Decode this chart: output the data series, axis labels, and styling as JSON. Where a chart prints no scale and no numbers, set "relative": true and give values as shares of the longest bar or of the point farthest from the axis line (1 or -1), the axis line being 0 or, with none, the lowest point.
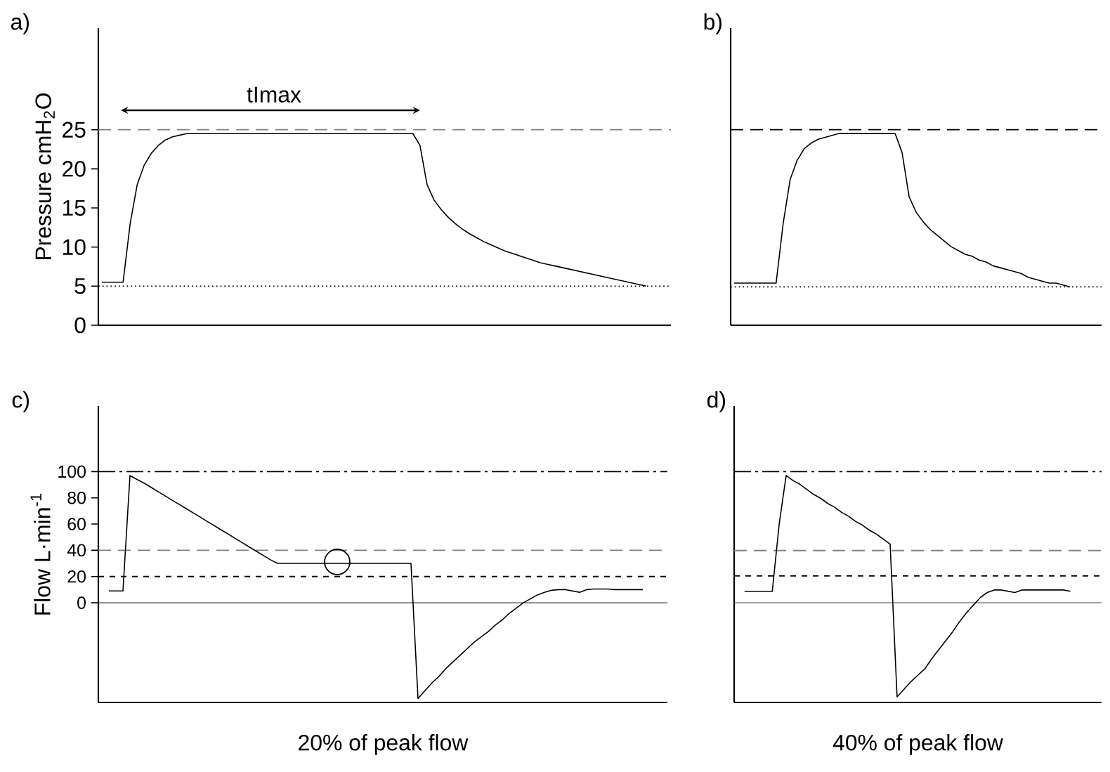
{
  "chart_data": [
    {
      "type": "line",
      "title": "a)",
      "ylabel": "Pressure cmH$_{2}$O",
      "annotations": [
        "tImax"
      ],
      "tick_labels": "y",
      "ylim": [
        0,
        38
      ],
      "yticks": [
        0,
        5,
        10,
        15,
        20,
        25
      ],
      "categories": [
        null,
        null,
        null,
        null,
        null,
        null,
        null,
        null,
        null,
        null,
        null,
        null,
        null,
        null,
        null,
        null,
        null,
        null,
        null,
        null,
        null,
        null,
        null,
        null,
        null,
        null,
        null,
        null,
        null,
        null,
        null,
        null,
        null,
        null,
        null,
        null,
        null,
        null,
        null,
        null,
        null,
        null,
        null,
        null,
        null,
        null,
        null,
        null,
        null,
        null,
        null,
        null,
        null,
        null,
        null,
        null,
        null,
        null,
        null,
        null,
        null,
        null,
        null,
        null,
        null,
        null,
        null,
        null,
        null,
        null,
        null,
        null,
        null,
        null,
        null,
        null,
        null,
        null,
        null,
        null,
        null
      ],
      "color": "#000000",
      "values": [
        5.5,
        5.5,
        5.5,
        5.5,
        13,
        18,
        20.5,
        22,
        23,
        23.7,
        24.1,
        24.3,
        24.5,
        24.5,
        24.5,
        24.5,
        24.5,
        24.5,
        24.5,
        24.5,
        24.5,
        24.5,
        24.5,
        24.5,
        24.5,
        24.5,
        24.5,
        24.5,
        24.5,
        24.5,
        24.5,
        24.5,
        24.5,
        24.5,
        24.5,
        24.5,
        24.5,
        24.5,
        24.5,
        24.5,
        24.5,
        24.5,
        24.5,
        24.5,
        24.5,
        23,
        18,
        16,
        14.8,
        13.8,
        13,
        12.3,
        11.7,
        11.2,
        10.7,
        10.3,
        9.9,
        9.5,
        9.2,
        8.9,
        8.6,
        8.3,
        8.0,
        7.8,
        7.6,
        7.4,
        7.2,
        7.0,
        6.8,
        6.6,
        6.4,
        6.2,
        6.0,
        5.8,
        5.6,
        5.4,
        5.2,
        5.0,
        null,
        null,
        null
      ],
      "ref_lines": [
        {
          "axis": "y",
          "value": 25,
          "color": "#808080",
          "line_style": "dashed"
        },
        {
          "axis": "y",
          "value": 5,
          "color": "#000000",
          "line_style": "dotted"
        }
      ]
    },
    {
      "type": "line",
      "title": "b)",
      "relative": true,
      "categories": [
        null,
        null,
        null,
        null,
        null,
        null,
        null,
        null,
        null,
        null,
        null,
        null,
        null,
        null,
        null,
        null,
        null,
        null,
        null,
        null,
        null,
        null,
        null,
        null,
        null,
        null,
        null,
        null,
        null,
        null,
        null,
        null,
        null,
        null,
        null,
        null,
        null,
        null,
        null,
        null,
        null,
        null,
        null,
        null,
        null,
        null,
        null,
        null,
        null,
        null,
        null,
        null,
        null
      ],
      "color": "#000000",
      "values": [
        0.22,
        0.22,
        0.22,
        0.22,
        0.22,
        0.22,
        0.22,
        0.53,
        0.76,
        0.86,
        0.92,
        0.95,
        0.97,
        0.98,
        0.99,
        1,
        1,
        1,
        1,
        1,
        1,
        1,
        1,
        1,
        0.9,
        0.67,
        0.59,
        0.54,
        0.5,
        0.47,
        0.44,
        0.41,
        0.39,
        0.37,
        0.36,
        0.34,
        0.33,
        0.31,
        0.3,
        0.29,
        0.28,
        0.27,
        0.25,
        0.24,
        0.23,
        0.22,
        0.22,
        0.21,
        0.2,
        null,
        null,
        null,
        null
      ],
      "ref_lines": [
        {
          "axis": "y",
          "value": 1.02,
          "color": "#000000",
          "line_style": "dashed"
        },
        {
          "axis": "y",
          "value": 0.2,
          "color": "#000000",
          "line_style": "dotted"
        }
      ]
    },
    {
      "type": "line",
      "title": "c)",
      "ylabel": "Flow L·min$^{-1}$",
      "xlabel": "20% of peak flow",
      "tick_labels": "y",
      "ylim": [
        -76,
        150
      ],
      "yticks": [
        0,
        20,
        40,
        60,
        80,
        100
      ],
      "categories": [
        null,
        null,
        null,
        null,
        null,
        null,
        null,
        null,
        null,
        null,
        null,
        null,
        null,
        null,
        null,
        null,
        null,
        null,
        null,
        null,
        null,
        null,
        null,
        null,
        null,
        null,
        null,
        null,
        null,
        null,
        null,
        null,
        null,
        null,
        null,
        null,
        null,
        null,
        null,
        null,
        null,
        null,
        null,
        null,
        null,
        null,
        null,
        null,
        null,
        null,
        null,
        null,
        null,
        null,
        null,
        null,
        null,
        null,
        null,
        null,
        null,
        null,
        null,
        null,
        null,
        null,
        null,
        null,
        null,
        null,
        null,
        null,
        null,
        null,
        null,
        null,
        null,
        null,
        null,
        null,
        null
      ],
      "color": "#000000",
      "values": [
        null,
        9,
        9,
        9,
        97,
        94,
        91.2,
        88.0,
        84.7,
        81.5,
        78.2,
        75.0,
        71.8,
        68.5,
        65.3,
        62.0,
        58.8,
        55.5,
        52.3,
        49.0,
        45.8,
        42.5,
        39.3,
        36.0,
        32.8,
        30,
        30,
        30,
        30,
        30,
        30,
        30,
        30,
        30,
        30,
        30,
        30,
        30,
        30,
        30,
        30,
        30,
        30,
        30,
        30,
        -73,
        -67,
        -61,
        -56,
        -50,
        -45,
        -40,
        -35,
        -30,
        -26,
        -22,
        -17,
        -13,
        -8,
        -4,
        0,
        3,
        6,
        8,
        9.5,
        10,
        10,
        9,
        8,
        10,
        10.5,
        10.5,
        10.5,
        10,
        10,
        10,
        10,
        10,
        null,
        null,
        null
      ],
      "ref_lines": [
        {
          "axis": "y",
          "value": 100,
          "color": "#000000",
          "line_style": "dashdot"
        },
        {
          "axis": "y",
          "value": 40,
          "color": "#808080",
          "line_style": "dashed"
        },
        {
          "axis": "y",
          "value": 20,
          "color": "#000000",
          "line_style": "densely dashed"
        },
        {
          "axis": "y",
          "value": 0,
          "color": "#404040",
          "line_style": "solid"
        }
      ]
    },
    {
      "type": "line",
      "title": "d)",
      "xlabel": "40% of peak flow",
      "relative": true,
      "categories": [
        null,
        null,
        null,
        null,
        null,
        null,
        null,
        null,
        null,
        null,
        null,
        null,
        null,
        null,
        null,
        null,
        null,
        null,
        null,
        null,
        null,
        null,
        null,
        null,
        null,
        null,
        null,
        null,
        null,
        null,
        null,
        null,
        null,
        null,
        null,
        null,
        null,
        null,
        null,
        null,
        null,
        null,
        null,
        null,
        null,
        null,
        null,
        null,
        null,
        null,
        null,
        null,
        null
      ],
      "color": "#000000",
      "values": [
        null,
        0.09,
        0.09,
        0.09,
        0.09,
        0.09,
        0.62,
        1,
        0.96,
        0.93,
        0.89,
        0.85,
        0.82,
        0.78,
        0.75,
        0.71,
        0.68,
        0.64,
        0.61,
        0.57,
        0.54,
        0.5,
        0.46,
        -0.74,
        -0.68,
        -0.62,
        -0.57,
        -0.52,
        -0.44,
        -0.37,
        -0.3,
        -0.23,
        -0.15,
        -0.08,
        -0.02,
        0.04,
        0.08,
        0.1,
        0.1,
        0.09,
        0.08,
        0.1,
        0.1,
        0.1,
        0.1,
        0.1,
        0.1,
        0.1,
        0.09,
        null,
        null,
        null,
        null
      ],
      "ref_lines": [
        {
          "axis": "y",
          "value": 1.03,
          "color": "#000000",
          "line_style": "dashdot"
        },
        {
          "axis": "y",
          "value": 0.41,
          "color": "#808080",
          "line_style": "dashed"
        },
        {
          "axis": "y",
          "value": 0.21,
          "color": "#000000",
          "line_style": "densely dashed"
        },
        {
          "axis": "y",
          "value": 0,
          "color": "#404040",
          "line_style": "solid"
        }
      ]
    }
  ]
}
